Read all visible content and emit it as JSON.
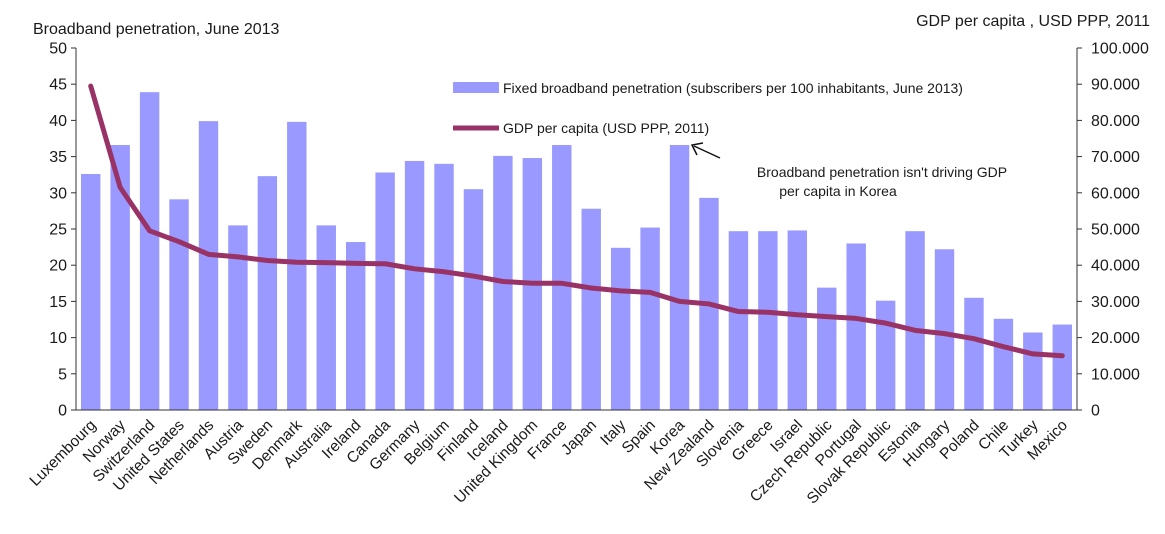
{
  "chart_data": {
    "type": "bar",
    "left_axis_title": "Broadband penetration, June 2013",
    "right_axis_title": "GDP per capita , USD PPP, 2011",
    "ylim_left": [
      0,
      50
    ],
    "ylim_right": [
      0,
      100000
    ],
    "left_ticks": [
      "0",
      "5",
      "10",
      "15",
      "20",
      "25",
      "30",
      "35",
      "40",
      "45",
      "50"
    ],
    "right_ticks": [
      "0",
      "10.000",
      "20.000",
      "30.000",
      "40.000",
      "50.000",
      "60.000",
      "70.000",
      "80.000",
      "90.000",
      "100.000"
    ],
    "categories": [
      "Luxembourg",
      "Norway",
      "Switzerland",
      "United States",
      "Netherlands",
      "Austria",
      "Sweden",
      "Denmark",
      "Australia",
      "Ireland",
      "Canada",
      "Germany",
      "Belgium",
      "Finland",
      "Iceland",
      "United Kingdom",
      "France",
      "Japan",
      "Italy",
      "Spain",
      "Korea",
      "New Zealand",
      "Slovenia",
      "Greece",
      "Israel",
      "Czech Republic",
      "Portugal",
      "Slovak Republic",
      "Estonia",
      "Hungary",
      "Poland",
      "Chile",
      "Turkey",
      "Mexico"
    ],
    "series": [
      {
        "name": "Fixed broadband penetration (subscribers per 100 inhabitants, June 2013)",
        "kind": "bar",
        "axis": "left",
        "color": "#9999ff",
        "values": [
          32.6,
          36.6,
          43.9,
          29.1,
          39.9,
          25.5,
          32.3,
          39.8,
          25.5,
          23.2,
          32.8,
          34.4,
          34.0,
          30.5,
          35.1,
          34.8,
          36.6,
          27.8,
          22.4,
          25.2,
          36.6,
          29.3,
          24.7,
          24.7,
          24.8,
          16.9,
          23.0,
          15.1,
          24.7,
          22.2,
          15.5,
          12.6,
          10.7,
          11.8
        ]
      },
      {
        "name": "GDP per capita (USD PPP, 2011)",
        "kind": "line",
        "axis": "right",
        "color": "#993366",
        "values": [
          89500,
          61500,
          49500,
          46500,
          43000,
          42300,
          41300,
          40800,
          40700,
          40500,
          40400,
          39000,
          38200,
          37000,
          35500,
          35000,
          35000,
          33700,
          32900,
          32500,
          30000,
          29300,
          27200,
          27000,
          26300,
          25800,
          25300,
          24000,
          22000,
          21100,
          19700,
          17500,
          15500,
          15000
        ]
      }
    ],
    "annotation": {
      "text_lines": [
        "Broadband penetration isn't driving GDP",
        "per capita in Korea"
      ],
      "target_category": "Korea"
    },
    "grid": false,
    "legend_position": "top-right"
  }
}
